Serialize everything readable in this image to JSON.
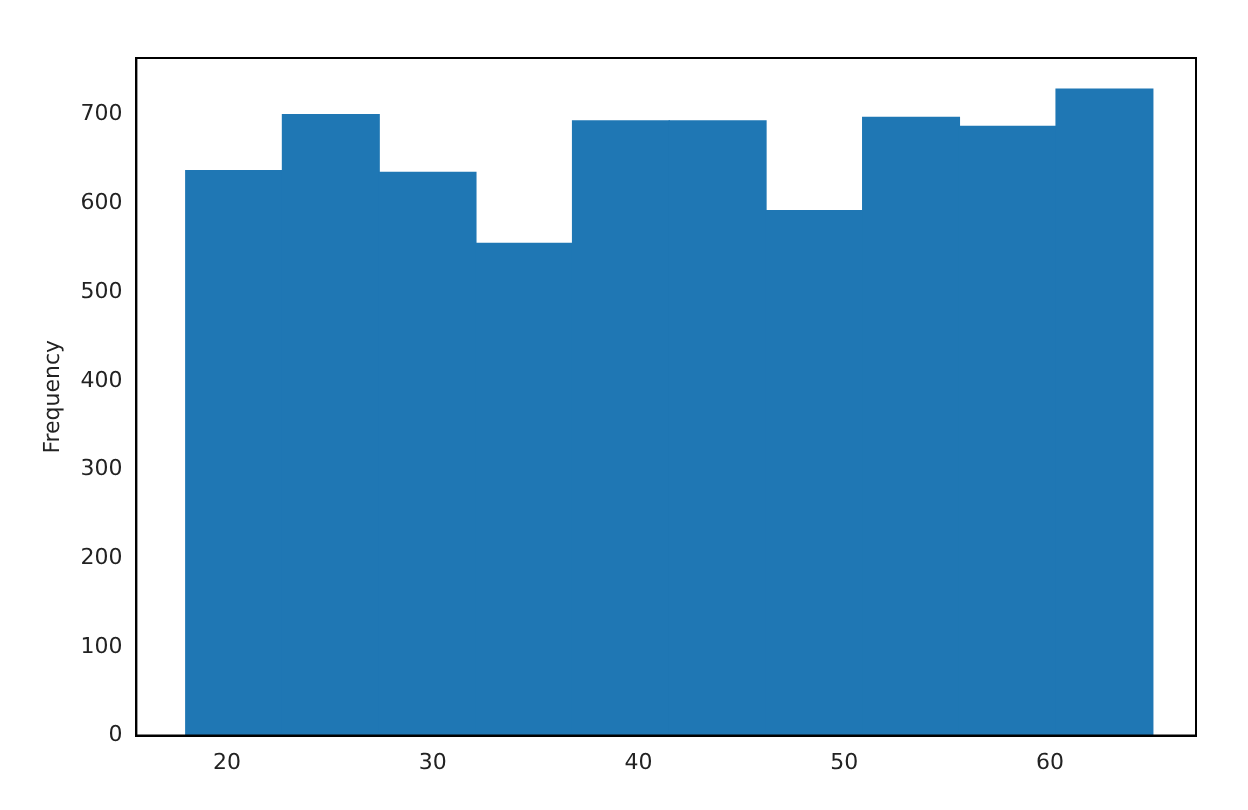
{
  "chart_data": {
    "type": "histogram",
    "ylabel": "Frequency",
    "bins": [
      18,
      22.7,
      27.4,
      32.1,
      36.8,
      41.5,
      46.2,
      50.9,
      55.6,
      60.3,
      65
    ],
    "values": [
      637,
      700,
      635,
      555,
      693,
      693,
      592,
      697,
      687,
      729
    ],
    "color": "#1f77b4",
    "xlim": [
      15.6,
      67.1
    ],
    "xticks": [
      20,
      30,
      40,
      50,
      60
    ],
    "ylim": [
      0,
      764
    ],
    "yticks": [
      0,
      100,
      200,
      300,
      400,
      500,
      600,
      700
    ],
    "grid": false,
    "legend": false
  }
}
